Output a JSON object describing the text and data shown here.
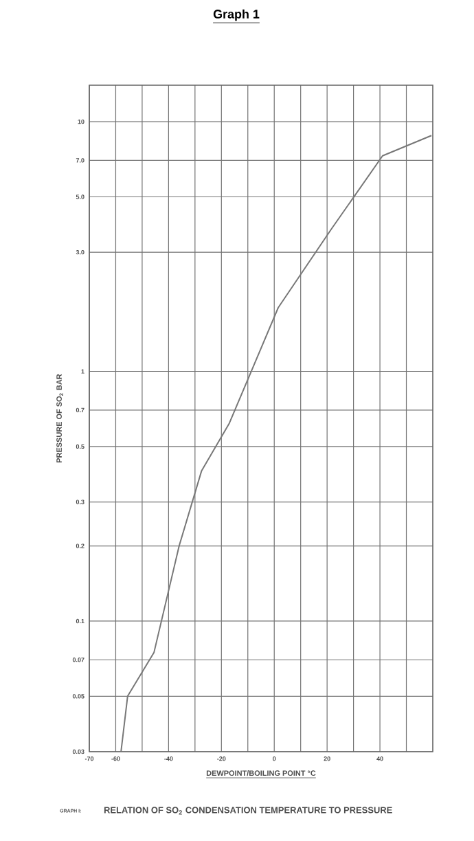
{
  "chart_data": {
    "type": "line",
    "title": "Graph 1",
    "xlabel": "DEWPOINT/BOILING POINT °C",
    "ylabel": "PRESSURE OF SO$_{2}$ BAR",
    "annotations": [
      "GRAPH I:",
      "RELATION OF SO$_{2}$ CONDENSATION TEMPERATURE TO PRESSURE"
    ],
    "x": [
      -58,
      -55.5,
      -45.5,
      -36,
      -27.5,
      -17,
      1.5,
      21.5,
      41,
      59.5
    ],
    "series": [
      {
        "color": "#777777",
        "values": [
          0.03,
          0.05,
          0.075,
          0.2,
          0.4,
          0.62,
          1.8,
          3.7,
          7.3,
          8.8
        ]
      }
    ],
    "xlim": [
      -70,
      60
    ],
    "xticks": [
      -70,
      -60,
      {
        "value": -50,
        "label": null
      },
      -40,
      {
        "value": -30,
        "label": null
      },
      -20,
      {
        "value": -10,
        "label": null
      },
      0,
      {
        "value": 10,
        "label": null
      },
      20,
      {
        "value": 30,
        "label": null
      },
      40,
      {
        "value": 50,
        "label": null
      }
    ],
    "ylim": [
      0.03,
      14
    ],
    "log": "y",
    "yticks": [
      0.03,
      0.05,
      0.07,
      0.1,
      0.2,
      0.3,
      0.5,
      0.7,
      1,
      {
        "value": 3,
        "label": "3.0"
      },
      {
        "value": 5,
        "label": "5.0"
      },
      {
        "value": 7,
        "label": "7.0"
      },
      10
    ],
    "grid": true,
    "marker": "none",
    "line_style": "solid"
  }
}
